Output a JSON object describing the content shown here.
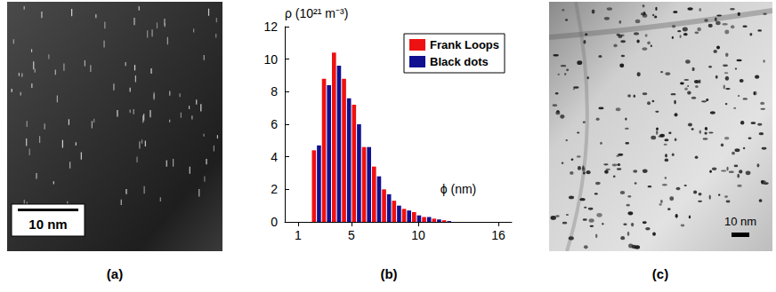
{
  "panels": [
    {
      "label": "(a)",
      "scale_bar": "10 nm"
    },
    {
      "label": "(b)"
    },
    {
      "label": "(c)",
      "scale_bar": "10 nm"
    }
  ],
  "chart_data": {
    "type": "histogram",
    "y_label": "ρ (10²¹ m⁻³)",
    "x_label": "ϕ (nm)",
    "bins": [
      2,
      2.75,
      3.5,
      4.25,
      5,
      5.75,
      6.5,
      7.25,
      8,
      8.75,
      9.5,
      10.25,
      11,
      11.75,
      12.5
    ],
    "series": [
      {
        "name": "Frank Loops",
        "color": "#ee1111",
        "values": [
          4.4,
          8.8,
          10.4,
          8.8,
          7.2,
          4.6,
          3.4,
          2.0,
          1.3,
          0.8,
          0.6,
          0.3,
          0.2,
          0.1
        ]
      },
      {
        "name": "Black dots",
        "color": "#101090",
        "values": [
          4.7,
          8.4,
          9.6,
          7.6,
          6.0,
          4.6,
          2.8,
          1.7,
          1.0,
          0.7,
          0.4,
          0.3,
          0.15,
          0.05
        ]
      }
    ],
    "xlim": [
      0,
      17
    ],
    "xticks": [
      1,
      5,
      10,
      16
    ],
    "ylim": [
      0,
      12
    ],
    "yticks": [
      0,
      2,
      4,
      6,
      8,
      10,
      12
    ],
    "legend": "upper right",
    "grid": false
  }
}
